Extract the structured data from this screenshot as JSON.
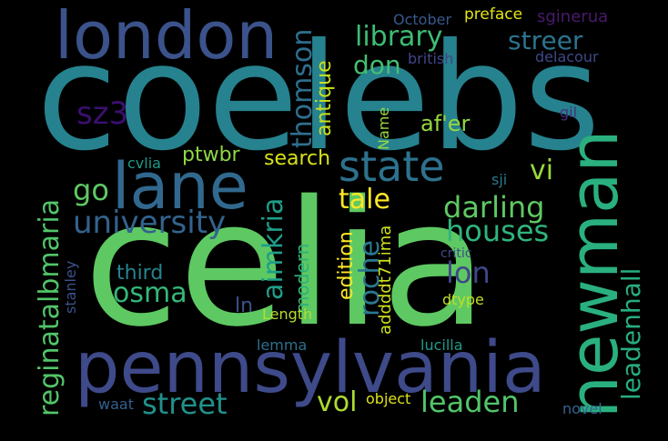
{
  "wordcloud": {
    "background": "#000000",
    "words": {
      "coelebs": {
        "text": "coelebs",
        "color": "#26828e"
      },
      "celia": {
        "text": "celia",
        "color": "#5ec962"
      },
      "pennsylvania": {
        "text": "pennsylvania",
        "color": "#3e4a89"
      },
      "london": {
        "text": "london",
        "color": "#3b528b"
      },
      "newman": {
        "text": "newman",
        "color": "#2ab07f"
      },
      "lane": {
        "text": "lane",
        "color": "#31688e"
      },
      "state": {
        "text": "state",
        "color": "#2c728e"
      },
      "university": {
        "text": "university",
        "color": "#33638d"
      },
      "darling": {
        "text": "darling",
        "color": "#5ec962"
      },
      "houses": {
        "text": "houses",
        "color": "#2fb47c"
      },
      "leaden": {
        "text": "leaden",
        "color": "#52c569"
      },
      "street": {
        "text": "street",
        "color": "#21918c"
      },
      "vol": {
        "text": "vol",
        "color": "#addc30"
      },
      "osma": {
        "text": "osma",
        "color": "#35b779"
      },
      "roche": {
        "text": "roche",
        "color": "#2a788e"
      },
      "aimkria": {
        "text": "aimkria",
        "color": "#1f9e89"
      },
      "thomson": {
        "text": "thomson",
        "color": "#2e6f8e"
      },
      "library": {
        "text": "library",
        "color": "#3dbc74"
      },
      "streer": {
        "text": "streer",
        "color": "#2c738e"
      },
      "don": {
        "text": "don",
        "color": "#44bf70"
      },
      "sz3": {
        "text": "sz3",
        "color": "#3b0f70"
      },
      "go": {
        "text": "go",
        "color": "#5ec962"
      },
      "tale": {
        "text": "tale",
        "color": "#fde725"
      },
      "vi": {
        "text": "vi",
        "color": "#9bd93c"
      },
      "lon": {
        "text": "lon",
        "color": "#404688"
      },
      "reginatalbmaria": {
        "text": "reginatalbmaria",
        "color": "#52c569"
      },
      "leadenhall": {
        "text": "leadenhall",
        "color": "#27ad81"
      },
      "af_er": {
        "text": "af'er",
        "color": "#95d840"
      },
      "search": {
        "text": "search",
        "color": "#d8e219"
      },
      "ptwbr": {
        "text": "ptwbr",
        "color": "#8fd744"
      },
      "antique": {
        "text": "antique",
        "color": "#c8e020"
      },
      "third": {
        "text": "third",
        "color": "#25848e"
      },
      "modern": {
        "text": "modern",
        "color": "#2db27d"
      },
      "edition": {
        "text": "edition",
        "color": "#fde725"
      },
      "addddt71ima": {
        "text": "addddt71ima",
        "color": "#d0e11c"
      },
      "ln": {
        "text": "ln",
        "color": "#3b528b"
      },
      "length": {
        "text": "Length",
        "color": "#b5de2b"
      },
      "dtype": {
        "text": "dtype",
        "color": "#c2df23"
      },
      "object": {
        "text": "object",
        "color": "#dde318"
      },
      "lemma": {
        "text": "lemma",
        "color": "#2d708e"
      },
      "lucilla": {
        "text": "lucilla",
        "color": "#1e9b8a"
      },
      "waat": {
        "text": "waat",
        "color": "#355f8d"
      },
      "novel": {
        "text": "novel",
        "color": "#33638d"
      },
      "critic": {
        "text": "critic",
        "color": "#3e4a89"
      },
      "stanley": {
        "text": "stanley",
        "color": "#3b528b"
      },
      "cvlia": {
        "text": "cvlia",
        "color": "#1f9a8a"
      },
      "sji": {
        "text": "sji",
        "color": "#2a788e"
      },
      "name": {
        "text": "Name",
        "color": "#95d840"
      },
      "october": {
        "text": "October",
        "color": "#38598c"
      },
      "preface": {
        "text": "preface",
        "color": "#e5e419"
      },
      "sginerua": {
        "text": "sginerua",
        "color": "#481a6c"
      },
      "british": {
        "text": "british",
        "color": "#414487"
      },
      "delacour": {
        "text": "delacour",
        "color": "#3f4889"
      },
      "gil": {
        "text": "gil",
        "color": "#46327e"
      }
    }
  }
}
